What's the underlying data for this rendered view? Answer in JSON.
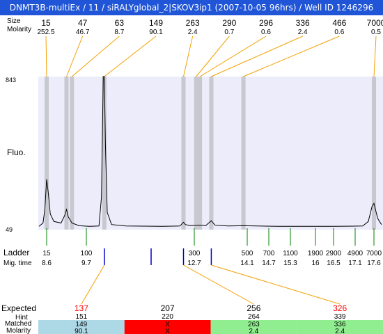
{
  "window_title": "DNMT3B-multiEx / 11  / siRALYglobal_2|SKOV3ip1 (2007-10-05 96hrs) / Well ID 1246296",
  "row_labels": {
    "size": "Size",
    "molarity": "Molarity",
    "fluo": "Fluo.",
    "ladder": "Ladder",
    "mig_time": "Mig. time",
    "expected": "Expected",
    "hint": "Hint",
    "matched": "Matched",
    "molarity_bottom": "Molarity"
  },
  "chart_data": {
    "type": "line",
    "ylabel": "Fluo.",
    "y_axis": {
      "top_label": "843",
      "bottom_label": "49"
    },
    "x_axis": {
      "label": "Mig. time",
      "range": [
        8.6,
        17.6
      ]
    },
    "peaks": [
      {
        "size": "15",
        "molarity": "252.5",
        "time": 8.6
      },
      {
        "size": "47",
        "molarity": "46.7",
        "time": 9.15
      },
      {
        "size": "63",
        "molarity": "8.7",
        "time": 9.3
      },
      {
        "size": "149",
        "molarity": "90.1",
        "time": 10.2
      },
      {
        "size": "263",
        "molarity": "2.4",
        "time": 12.4
      },
      {
        "size": "290",
        "molarity": "0.7",
        "time": 12.75
      },
      {
        "size": "296",
        "molarity": "0.6",
        "time": 12.85
      },
      {
        "size": "336",
        "molarity": "2.4",
        "time": 13.15
      },
      {
        "size": "466",
        "molarity": "0.6",
        "time": 14.0
      },
      {
        "size": "7000",
        "molarity": "0.5",
        "time": 17.6
      }
    ],
    "ladder": [
      {
        "size": "15",
        "time": "8.6"
      },
      {
        "size": "100",
        "time": "9.7"
      },
      {
        "size": "300",
        "time": "12.7"
      },
      {
        "size": "500",
        "time": "14.1"
      },
      {
        "size": "700",
        "time": "14.7"
      },
      {
        "size": "1100",
        "time": "15.3"
      },
      {
        "size": "1900",
        "time": "16"
      },
      {
        "size": "2900",
        "time": "16.5"
      },
      {
        "size": "4900",
        "time": "17.1"
      },
      {
        "size": "7000",
        "time": "17.6"
      }
    ],
    "trace": [
      [
        8.2,
        0.008
      ],
      [
        8.4,
        0.01
      ],
      [
        8.5,
        0.03
      ],
      [
        8.55,
        0.12
      ],
      [
        8.6,
        0.32
      ],
      [
        8.65,
        0.22
      ],
      [
        8.7,
        0.09
      ],
      [
        8.8,
        0.04
      ],
      [
        9.0,
        0.03
      ],
      [
        9.1,
        0.08
      ],
      [
        9.15,
        0.12
      ],
      [
        9.2,
        0.07
      ],
      [
        9.3,
        0.03
      ],
      [
        9.5,
        0.012
      ],
      [
        9.8,
        0.008
      ],
      [
        10.05,
        0.01
      ],
      [
        10.12,
        0.2
      ],
      [
        10.17,
        1.0
      ],
      [
        10.2,
        1.0
      ],
      [
        10.23,
        0.55
      ],
      [
        10.28,
        0.1
      ],
      [
        10.4,
        0.02
      ],
      [
        10.8,
        0.01
      ],
      [
        11.8,
        0.008
      ],
      [
        12.3,
        0.01
      ],
      [
        12.4,
        0.035
      ],
      [
        12.45,
        0.02
      ],
      [
        12.6,
        0.012
      ],
      [
        12.75,
        0.015
      ],
      [
        12.85,
        0.016
      ],
      [
        13.0,
        0.012
      ],
      [
        13.15,
        0.045
      ],
      [
        13.25,
        0.015
      ],
      [
        13.6,
        0.01
      ],
      [
        14.0,
        0.012
      ],
      [
        15.0,
        0.008
      ],
      [
        16.5,
        0.008
      ],
      [
        17.3,
        0.01
      ],
      [
        17.45,
        0.04
      ],
      [
        17.55,
        0.14
      ],
      [
        17.6,
        0.16
      ],
      [
        17.7,
        0.06
      ],
      [
        17.8,
        0.02
      ]
    ]
  },
  "fragment_table": {
    "columns": [
      {
        "expected": "137",
        "hint": "151",
        "matched": "149",
        "molarity": "90.1",
        "status_color": "#add8e6",
        "expected_color": "#ff0000"
      },
      {
        "expected": "207",
        "hint": "220",
        "matched": "X",
        "molarity": "X",
        "status_color": "#ff0000",
        "expected_color": "#000000"
      },
      {
        "expected": "256",
        "hint": "264",
        "matched": "263",
        "molarity": "2.4",
        "status_color": "#90ee90",
        "expected_color": "#000000"
      },
      {
        "expected": "326",
        "hint": "339",
        "matched": "336",
        "molarity": "2.4",
        "status_color": "#90ee90",
        "expected_color": "#ff0000"
      }
    ]
  },
  "colors": {
    "title_bar": "#1f55d6",
    "plot_bg": "#ececfb",
    "peak_band": "#c8c8d0",
    "leader_line": "#f4a000",
    "ladder_tick": "#008000",
    "marker_blue": "#0000cc"
  }
}
